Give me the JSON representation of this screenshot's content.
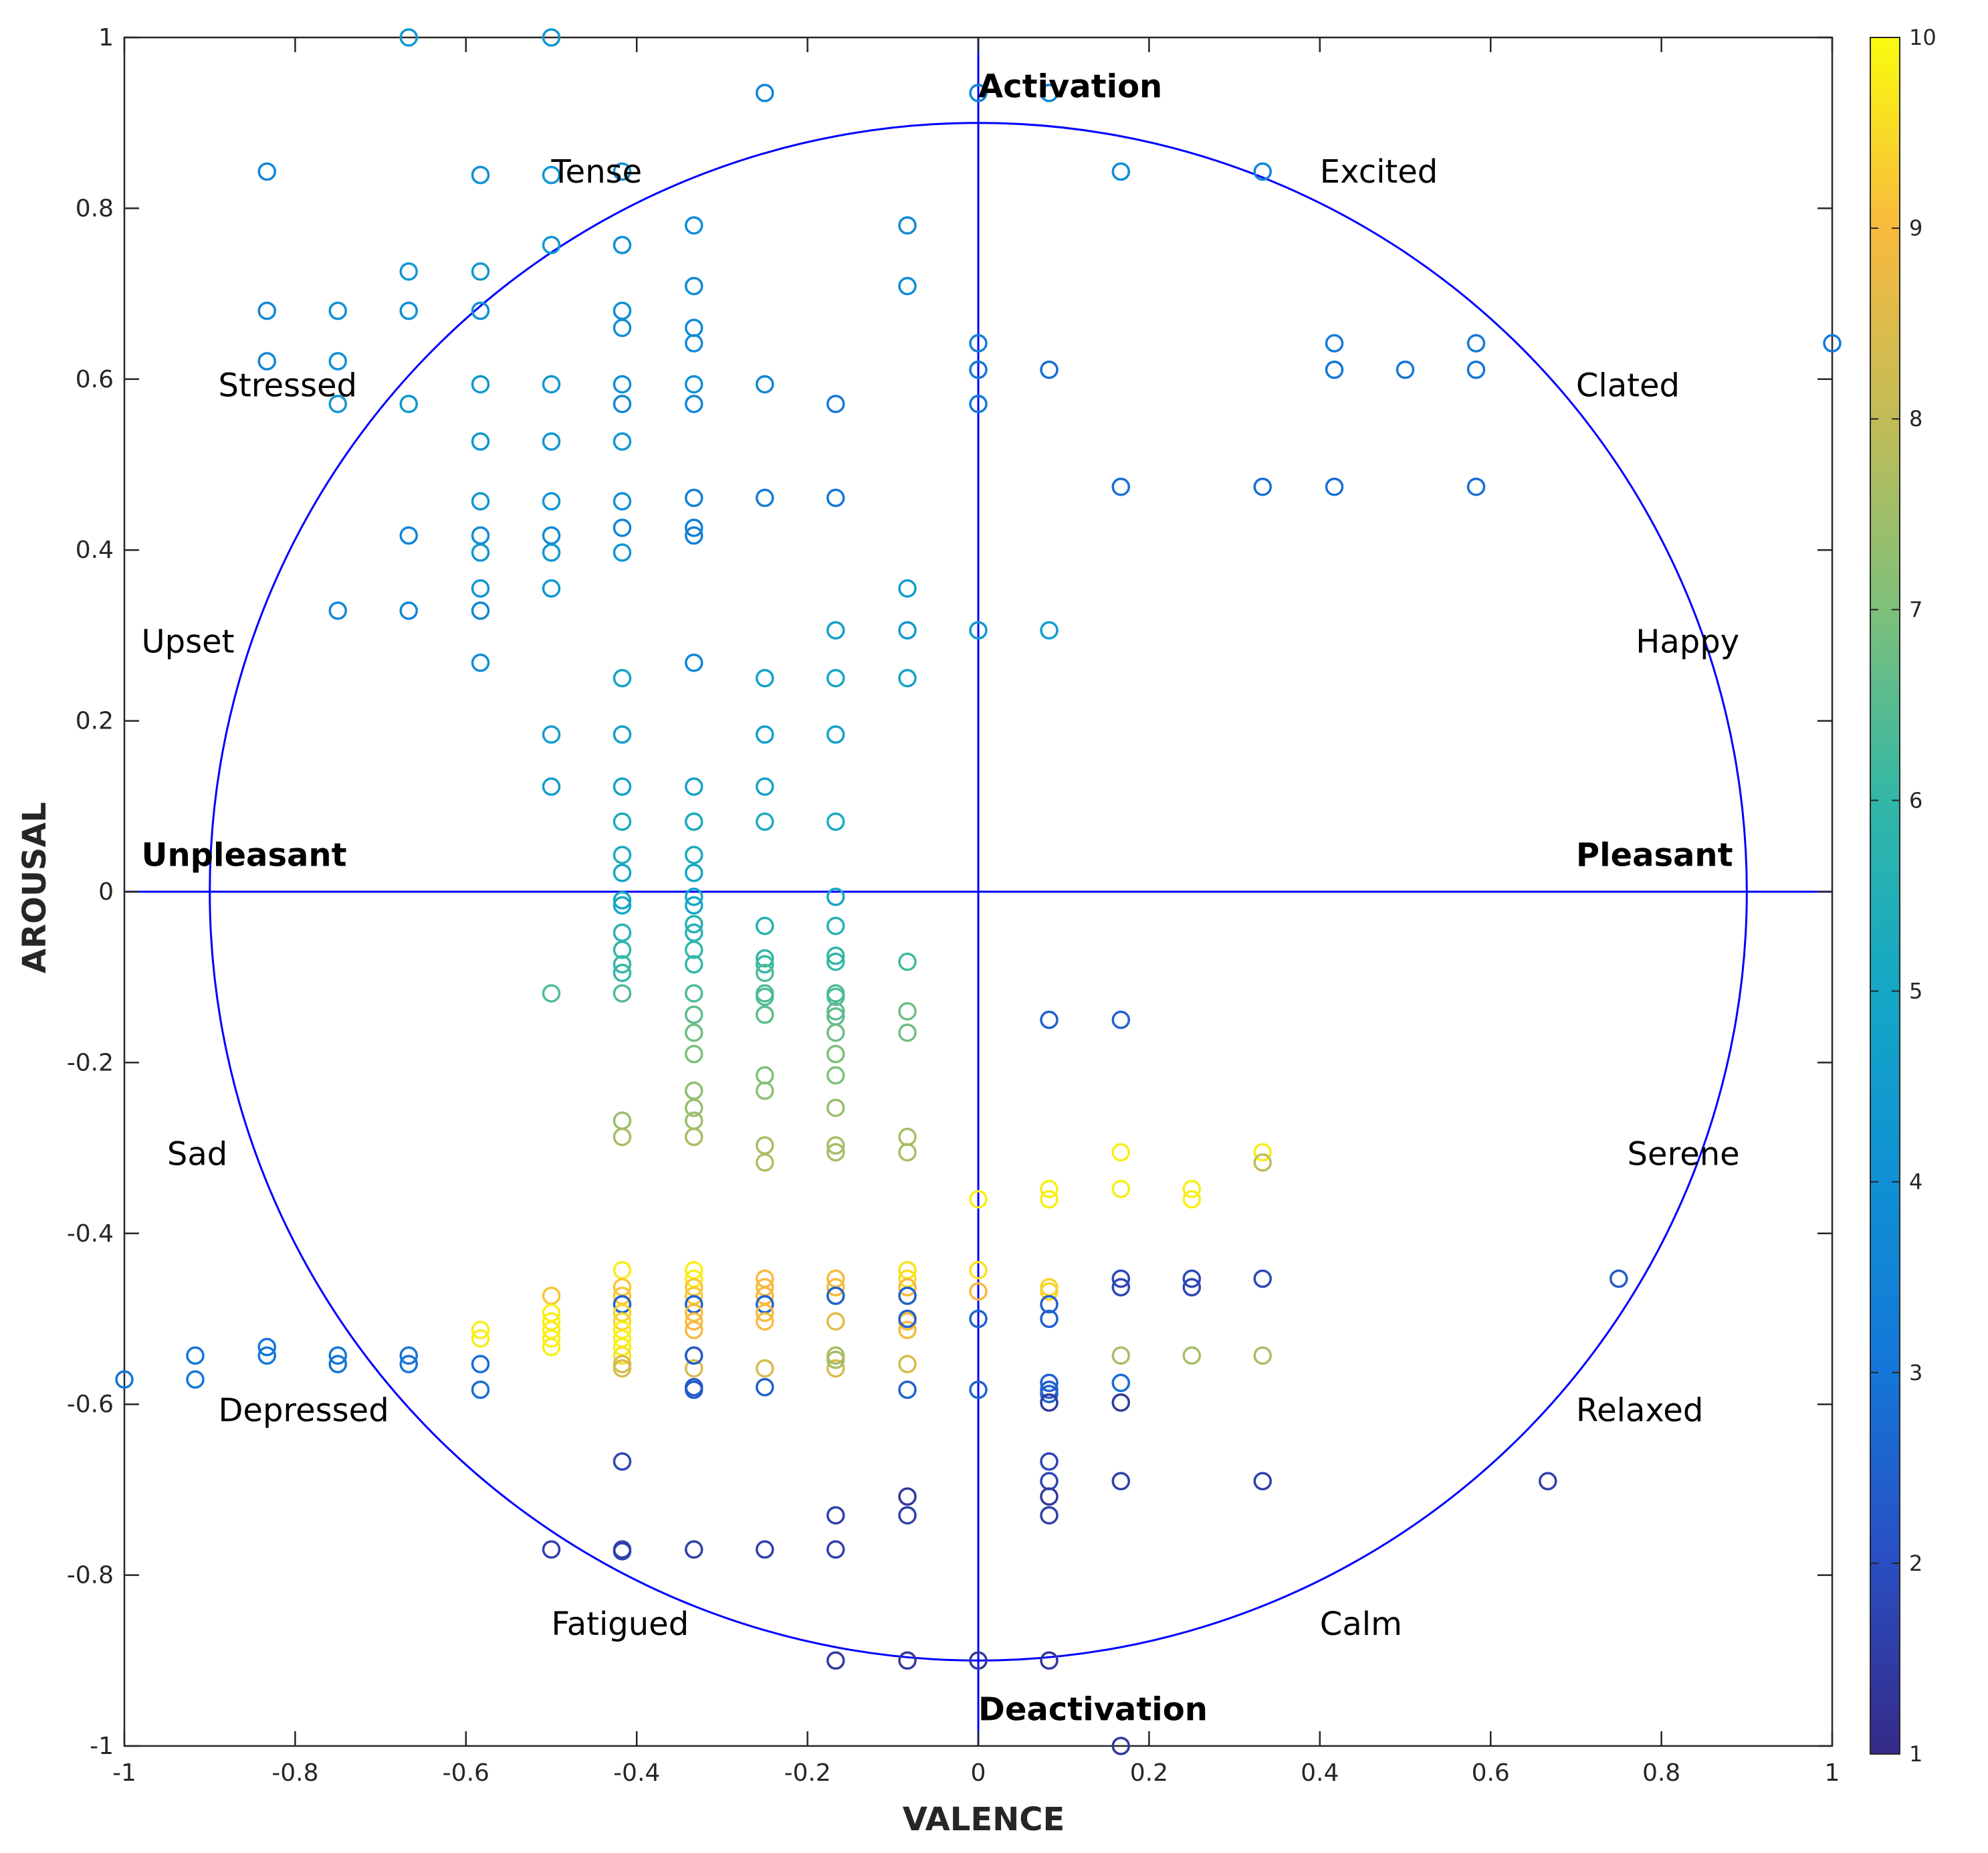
{
  "chart_data": {
    "type": "scatter",
    "xlabel": "VALENCE",
    "ylabel": "AROUSAL",
    "xlim": [
      -1,
      1
    ],
    "ylim": [
      -1,
      1
    ],
    "x_ticks": [
      "-1",
      "-0.8",
      "-0.6",
      "-0.4",
      "-0.2",
      "0",
      "0.2",
      "0.4",
      "0.6",
      "0.8",
      "1"
    ],
    "y_ticks": [
      "-1",
      "-0.8",
      "-0.6",
      "-0.4",
      "-0.2",
      "0",
      "0.2",
      "0.4",
      "0.6",
      "0.8",
      "1"
    ],
    "circle_radius": 0.9,
    "colorbar": {
      "min": 1,
      "max": 10,
      "ticks": [
        "1",
        "2",
        "3",
        "4",
        "5",
        "6",
        "7",
        "8",
        "9",
        "10"
      ],
      "colormap": "parula"
    },
    "line_color": "#0000ff",
    "labels": [
      {
        "text": "Activation",
        "x": 0.0,
        "y": 0.93,
        "bold": true
      },
      {
        "text": "Deactivation",
        "x": 0.0,
        "y": -0.97,
        "bold": true
      },
      {
        "text": "Unpleasant",
        "x": -0.98,
        "y": 0.03,
        "bold": true
      },
      {
        "text": "Pleasant",
        "x": 0.7,
        "y": 0.03,
        "bold": true
      },
      {
        "text": "Tense",
        "x": -0.5,
        "y": 0.83,
        "bold": false
      },
      {
        "text": "Excited",
        "x": 0.4,
        "y": 0.83,
        "bold": false
      },
      {
        "text": "Stressed",
        "x": -0.89,
        "y": 0.58,
        "bold": false
      },
      {
        "text": "Clated",
        "x": 0.7,
        "y": 0.58,
        "bold": false
      },
      {
        "text": "Upset",
        "x": -0.98,
        "y": 0.28,
        "bold": false
      },
      {
        "text": "Happy",
        "x": 0.77,
        "y": 0.28,
        "bold": false
      },
      {
        "text": "Sad",
        "x": -0.95,
        "y": -0.32,
        "bold": false
      },
      {
        "text": "Serene",
        "x": 0.76,
        "y": -0.32,
        "bold": false
      },
      {
        "text": "Depressed",
        "x": -0.89,
        "y": -0.62,
        "bold": false
      },
      {
        "text": "Relaxed",
        "x": 0.7,
        "y": -0.62,
        "bold": false
      },
      {
        "text": "Fatigued",
        "x": -0.5,
        "y": -0.87,
        "bold": false
      },
      {
        "text": "Calm",
        "x": 0.4,
        "y": -0.87,
        "bold": false
      }
    ],
    "points": [
      [
        -0.667,
        1.0,
        4.3
      ],
      [
        -0.5,
        1.0,
        4.3
      ],
      [
        -0.25,
        0.935,
        3.6
      ],
      [
        0.0,
        0.935,
        3.6
      ],
      [
        0.083,
        0.935,
        3.6
      ],
      [
        -0.833,
        0.843,
        3.6
      ],
      [
        -0.583,
        0.839,
        4.0
      ],
      [
        -0.5,
        0.839,
        4.3
      ],
      [
        -0.417,
        0.843,
        4.0
      ],
      [
        0.167,
        0.843,
        3.8
      ],
      [
        0.333,
        0.843,
        3.6
      ],
      [
        -0.5,
        0.757,
        4.3
      ],
      [
        -0.417,
        0.757,
        4.0
      ],
      [
        -0.333,
        0.78,
        3.8
      ],
      [
        -0.083,
        0.78,
        3.8
      ],
      [
        -0.667,
        0.726,
        4.3
      ],
      [
        -0.583,
        0.726,
        4.3
      ],
      [
        -0.333,
        0.709,
        3.8
      ],
      [
        -0.083,
        0.709,
        3.8
      ],
      [
        -0.833,
        0.68,
        3.6
      ],
      [
        -0.75,
        0.68,
        4.0
      ],
      [
        -0.667,
        0.68,
        4.0
      ],
      [
        -0.583,
        0.68,
        4.0
      ],
      [
        -0.417,
        0.68,
        4.0
      ],
      [
        -0.417,
        0.66,
        4.0
      ],
      [
        -0.333,
        0.66,
        3.8
      ],
      [
        -0.333,
        0.642,
        3.8
      ],
      [
        -0.833,
        0.621,
        3.6
      ],
      [
        -0.75,
        0.621,
        4.0
      ],
      [
        0.0,
        0.642,
        3.4
      ],
      [
        0.0,
        0.611,
        3.0
      ],
      [
        0.083,
        0.611,
        2.8
      ],
      [
        0.417,
        0.642,
        3.2
      ],
      [
        0.417,
        0.611,
        3.0
      ],
      [
        0.5,
        0.611,
        3.0
      ],
      [
        0.583,
        0.642,
        3.2
      ],
      [
        0.583,
        0.611,
        3.0
      ],
      [
        1.0,
        0.642,
        3.2
      ],
      [
        -0.583,
        0.594,
        4.3
      ],
      [
        -0.5,
        0.594,
        4.3
      ],
      [
        -0.417,
        0.594,
        4.0
      ],
      [
        -0.333,
        0.594,
        4.0
      ],
      [
        -0.25,
        0.594,
        3.6
      ],
      [
        -0.75,
        0.571,
        4.3
      ],
      [
        -0.667,
        0.571,
        4.3
      ],
      [
        -0.417,
        0.571,
        3.6
      ],
      [
        -0.333,
        0.571,
        3.6
      ],
      [
        -0.167,
        0.571,
        3.2
      ],
      [
        0.0,
        0.571,
        3.0
      ],
      [
        -0.583,
        0.527,
        4.3
      ],
      [
        -0.5,
        0.527,
        4.3
      ],
      [
        -0.417,
        0.527,
        4.3
      ],
      [
        0.167,
        0.474,
        2.8
      ],
      [
        0.333,
        0.474,
        2.8
      ],
      [
        0.417,
        0.474,
        2.8
      ],
      [
        0.583,
        0.474,
        2.8
      ],
      [
        -0.583,
        0.457,
        4.3
      ],
      [
        -0.5,
        0.457,
        4.3
      ],
      [
        -0.417,
        0.457,
        4.0
      ],
      [
        -0.333,
        0.461,
        3.4
      ],
      [
        -0.25,
        0.461,
        3.2
      ],
      [
        -0.167,
        0.461,
        3.0
      ],
      [
        -0.667,
        0.417,
        3.6
      ],
      [
        -0.583,
        0.417,
        3.8
      ],
      [
        -0.5,
        0.417,
        3.8
      ],
      [
        -0.417,
        0.426,
        3.6
      ],
      [
        -0.333,
        0.426,
        3.4
      ],
      [
        -0.333,
        0.417,
        3.4
      ],
      [
        -0.583,
        0.397,
        4.3
      ],
      [
        -0.5,
        0.397,
        4.3
      ],
      [
        -0.417,
        0.397,
        4.3
      ],
      [
        -0.583,
        0.355,
        4.3
      ],
      [
        -0.5,
        0.355,
        4.3
      ],
      [
        -0.083,
        0.355,
        4.5
      ],
      [
        -0.75,
        0.329,
        3.6
      ],
      [
        -0.667,
        0.329,
        3.6
      ],
      [
        -0.583,
        0.329,
        3.6
      ],
      [
        -0.167,
        0.306,
        4.6
      ],
      [
        -0.083,
        0.306,
        4.3
      ],
      [
        0.0,
        0.306,
        4.3
      ],
      [
        0.083,
        0.306,
        4.6
      ],
      [
        -0.583,
        0.268,
        3.8
      ],
      [
        -0.333,
        0.268,
        3.6
      ],
      [
        -0.417,
        0.25,
        4.8
      ],
      [
        -0.25,
        0.25,
        4.8
      ],
      [
        -0.167,
        0.25,
        5.0
      ],
      [
        -0.083,
        0.25,
        4.8
      ],
      [
        -0.5,
        0.184,
        4.6
      ],
      [
        -0.417,
        0.184,
        4.6
      ],
      [
        -0.25,
        0.184,
        4.6
      ],
      [
        -0.167,
        0.184,
        4.8
      ],
      [
        -0.5,
        0.123,
        4.6
      ],
      [
        -0.417,
        0.123,
        4.8
      ],
      [
        -0.333,
        0.123,
        4.8
      ],
      [
        -0.25,
        0.123,
        4.8
      ],
      [
        -0.417,
        0.082,
        5.2
      ],
      [
        -0.333,
        0.082,
        5.2
      ],
      [
        -0.25,
        0.082,
        5.2
      ],
      [
        -0.167,
        0.082,
        5.2
      ],
      [
        -0.417,
        0.043,
        5.2
      ],
      [
        -0.333,
        0.043,
        5.2
      ],
      [
        -0.417,
        0.022,
        5.0
      ],
      [
        -0.333,
        0.022,
        5.0
      ],
      [
        -0.417,
        -0.01,
        5.0
      ],
      [
        -0.417,
        -0.016,
        5.0
      ],
      [
        -0.333,
        -0.006,
        5.0
      ],
      [
        -0.333,
        -0.016,
        5.0
      ],
      [
        -0.167,
        -0.006,
        5.0
      ],
      [
        -0.417,
        -0.048,
        5.6
      ],
      [
        -0.333,
        -0.038,
        5.6
      ],
      [
        -0.333,
        -0.048,
        5.6
      ],
      [
        -0.25,
        -0.04,
        5.6
      ],
      [
        -0.167,
        -0.04,
        5.6
      ],
      [
        -0.417,
        -0.068,
        6.0
      ],
      [
        -0.417,
        -0.085,
        6.0
      ],
      [
        -0.417,
        -0.095,
        6.0
      ],
      [
        -0.333,
        -0.068,
        6.0
      ],
      [
        -0.333,
        -0.085,
        6.0
      ],
      [
        -0.25,
        -0.078,
        6.0
      ],
      [
        -0.25,
        -0.085,
        6.0
      ],
      [
        -0.167,
        -0.075,
        6.0
      ],
      [
        -0.167,
        -0.082,
        6.0
      ],
      [
        -0.083,
        -0.082,
        6.2
      ],
      [
        -0.5,
        -0.119,
        6.4
      ],
      [
        -0.417,
        -0.119,
        6.4
      ],
      [
        -0.333,
        -0.119,
        6.4
      ],
      [
        -0.25,
        -0.095,
        6.4
      ],
      [
        -0.25,
        -0.119,
        6.4
      ],
      [
        -0.25,
        -0.123,
        6.4
      ],
      [
        -0.167,
        -0.119,
        6.4
      ],
      [
        -0.167,
        -0.123,
        6.4
      ],
      [
        -0.333,
        -0.144,
        6.6
      ],
      [
        -0.25,
        -0.144,
        6.6
      ],
      [
        -0.167,
        -0.14,
        6.6
      ],
      [
        -0.167,
        -0.146,
        6.6
      ],
      [
        -0.083,
        -0.14,
        6.8
      ],
      [
        -0.083,
        -0.165,
        6.8
      ],
      [
        0.083,
        -0.15,
        2.5
      ],
      [
        0.167,
        -0.15,
        2.5
      ],
      [
        -0.333,
        -0.165,
        6.8
      ],
      [
        -0.167,
        -0.165,
        6.8
      ],
      [
        -0.333,
        -0.19,
        7.0
      ],
      [
        -0.167,
        -0.19,
        7.0
      ],
      [
        -0.25,
        -0.215,
        7.0
      ],
      [
        -0.167,
        -0.215,
        7.0
      ],
      [
        -0.333,
        -0.233,
        7.2
      ],
      [
        -0.25,
        -0.233,
        7.2
      ],
      [
        -0.333,
        -0.253,
        7.4
      ],
      [
        -0.167,
        -0.253,
        7.4
      ],
      [
        -0.417,
        -0.268,
        7.4
      ],
      [
        -0.333,
        -0.268,
        7.4
      ],
      [
        -0.417,
        -0.287,
        7.6
      ],
      [
        -0.333,
        -0.287,
        7.6
      ],
      [
        -0.083,
        -0.287,
        7.6
      ],
      [
        -0.25,
        -0.297,
        7.6
      ],
      [
        -0.167,
        -0.297,
        7.6
      ],
      [
        -0.167,
        -0.305,
        7.6
      ],
      [
        -0.083,
        -0.305,
        7.6
      ],
      [
        -0.25,
        -0.317,
        7.8
      ],
      [
        0.167,
        -0.305,
        9.8
      ],
      [
        0.333,
        -0.305,
        9.8
      ],
      [
        0.333,
        -0.317,
        8.0
      ],
      [
        0.083,
        -0.348,
        9.8
      ],
      [
        0.083,
        -0.36,
        9.8
      ],
      [
        0.167,
        -0.348,
        9.8
      ],
      [
        0.25,
        -0.348,
        9.8
      ],
      [
        0.25,
        -0.36,
        9.8
      ],
      [
        0.0,
        -0.36,
        9.8
      ],
      [
        -0.417,
        -0.443,
        9.8
      ],
      [
        -0.333,
        -0.443,
        9.8
      ],
      [
        -0.333,
        -0.453,
        9.8
      ],
      [
        -0.25,
        -0.453,
        9.0
      ],
      [
        -0.167,
        -0.453,
        9.0
      ],
      [
        -0.083,
        -0.443,
        9.6
      ],
      [
        -0.083,
        -0.453,
        9.6
      ],
      [
        0.0,
        -0.443,
        9.6
      ],
      [
        0.167,
        -0.453,
        1.8
      ],
      [
        0.25,
        -0.453,
        1.8
      ],
      [
        0.333,
        -0.453,
        1.8
      ],
      [
        0.167,
        -0.463,
        1.8
      ],
      [
        0.25,
        -0.463,
        1.8
      ],
      [
        0.75,
        -0.453,
        2.3
      ],
      [
        -0.5,
        -0.473,
        9.2
      ],
      [
        -0.417,
        -0.463,
        9.2
      ],
      [
        -0.417,
        -0.473,
        9.2
      ],
      [
        -0.333,
        -0.463,
        9.2
      ],
      [
        -0.333,
        -0.473,
        9.2
      ],
      [
        -0.25,
        -0.463,
        9.0
      ],
      [
        -0.25,
        -0.473,
        9.0
      ],
      [
        -0.167,
        -0.463,
        9.0
      ],
      [
        -0.167,
        -0.473,
        9.0
      ],
      [
        -0.083,
        -0.463,
        9.0
      ],
      [
        -0.083,
        -0.473,
        9.0
      ],
      [
        0.0,
        -0.468,
        9.0
      ],
      [
        0.083,
        -0.463,
        9.4
      ],
      [
        0.083,
        -0.468,
        9.4
      ],
      [
        -0.417,
        -0.483,
        2.5
      ],
      [
        -0.333,
        -0.483,
        2.5
      ],
      [
        -0.25,
        -0.483,
        2.5
      ],
      [
        -0.167,
        -0.473,
        2.5
      ],
      [
        -0.083,
        -0.473,
        2.5
      ],
      [
        0.083,
        -0.483,
        2.5
      ],
      [
        -0.417,
        -0.493,
        9.4
      ],
      [
        -0.417,
        -0.503,
        9.4
      ],
      [
        -0.333,
        -0.493,
        9.0
      ],
      [
        -0.333,
        -0.503,
        9.0
      ],
      [
        -0.25,
        -0.493,
        9.0
      ],
      [
        -0.25,
        -0.503,
        9.0
      ],
      [
        -0.083,
        -0.503,
        9.0
      ],
      [
        -0.083,
        -0.513,
        9.0
      ],
      [
        -0.167,
        -0.503,
        8.6
      ],
      [
        -0.333,
        -0.513,
        9.0
      ],
      [
        -0.5,
        -0.493,
        9.8
      ],
      [
        -0.5,
        -0.503,
        9.8
      ],
      [
        -0.5,
        -0.513,
        9.8
      ],
      [
        -0.5,
        -0.523,
        9.8
      ],
      [
        -0.5,
        -0.533,
        9.8
      ],
      [
        -0.417,
        -0.513,
        9.8
      ],
      [
        -0.417,
        -0.523,
        9.8
      ],
      [
        -0.417,
        -0.533,
        9.8
      ],
      [
        -0.583,
        -0.513,
        9.8
      ],
      [
        -0.583,
        -0.523,
        9.8
      ],
      [
        -0.417,
        -0.543,
        9.6
      ],
      [
        0.0,
        -0.5,
        2.5
      ],
      [
        0.083,
        -0.5,
        2.5
      ],
      [
        -0.083,
        -0.5,
        2.5
      ],
      [
        -1.0,
        -0.571,
        3.0
      ],
      [
        -0.917,
        -0.543,
        3.0
      ],
      [
        -0.917,
        -0.571,
        3.0
      ],
      [
        -0.833,
        -0.533,
        3.0
      ],
      [
        -0.833,
        -0.543,
        3.0
      ],
      [
        -0.75,
        -0.543,
        3.0
      ],
      [
        -0.75,
        -0.553,
        3.0
      ],
      [
        -0.667,
        -0.543,
        3.0
      ],
      [
        -0.667,
        -0.553,
        3.0
      ],
      [
        -0.583,
        -0.553,
        2.8
      ],
      [
        -0.583,
        -0.583,
        2.8
      ],
      [
        -0.417,
        -0.553,
        8.4
      ],
      [
        -0.417,
        -0.558,
        8.4
      ],
      [
        -0.333,
        -0.543,
        8.4
      ],
      [
        -0.333,
        -0.558,
        8.4
      ],
      [
        -0.25,
        -0.558,
        8.4
      ],
      [
        -0.167,
        -0.558,
        8.4
      ],
      [
        -0.083,
        -0.553,
        8.4
      ],
      [
        -0.333,
        -0.543,
        2.3
      ],
      [
        -0.167,
        -0.543,
        7.6
      ],
      [
        -0.167,
        -0.548,
        7.6
      ],
      [
        0.167,
        -0.543,
        7.6
      ],
      [
        0.25,
        -0.543,
        7.6
      ],
      [
        0.333,
        -0.543,
        7.6
      ],
      [
        -0.333,
        -0.583,
        2.3
      ],
      [
        -0.333,
        -0.58,
        2.3
      ],
      [
        -0.25,
        -0.58,
        2.5
      ],
      [
        -0.083,
        -0.583,
        2.5
      ],
      [
        0.0,
        -0.583,
        2.5
      ],
      [
        0.083,
        -0.575,
        2.5
      ],
      [
        0.083,
        -0.583,
        2.5
      ],
      [
        0.083,
        -0.588,
        2.5
      ],
      [
        0.167,
        -0.575,
        2.8
      ],
      [
        0.083,
        -0.598,
        1.4
      ],
      [
        0.167,
        -0.598,
        1.4
      ],
      [
        -0.417,
        -0.667,
        1.8
      ],
      [
        0.083,
        -0.667,
        1.8
      ],
      [
        0.083,
        -0.69,
        1.8
      ],
      [
        0.167,
        -0.69,
        1.6
      ],
      [
        0.333,
        -0.69,
        1.6
      ],
      [
        0.667,
        -0.69,
        1.6
      ],
      [
        -0.083,
        -0.708,
        1.4
      ],
      [
        0.083,
        -0.708,
        1.4
      ],
      [
        -0.167,
        -0.73,
        1.6
      ],
      [
        -0.083,
        -0.73,
        1.6
      ],
      [
        0.083,
        -0.73,
        1.6
      ],
      [
        -0.5,
        -0.77,
        1.6
      ],
      [
        -0.417,
        -0.77,
        1.6
      ],
      [
        -0.417,
        -0.772,
        1.6
      ],
      [
        -0.333,
        -0.77,
        1.6
      ],
      [
        -0.25,
        -0.77,
        1.6
      ],
      [
        -0.167,
        -0.77,
        1.6
      ],
      [
        -0.167,
        -0.9,
        1.4
      ],
      [
        -0.083,
        -0.9,
        1.4
      ],
      [
        0.0,
        -0.9,
        1.4
      ],
      [
        0.083,
        -0.9,
        1.4
      ],
      [
        0.167,
        -1.0,
        1.4
      ]
    ]
  }
}
